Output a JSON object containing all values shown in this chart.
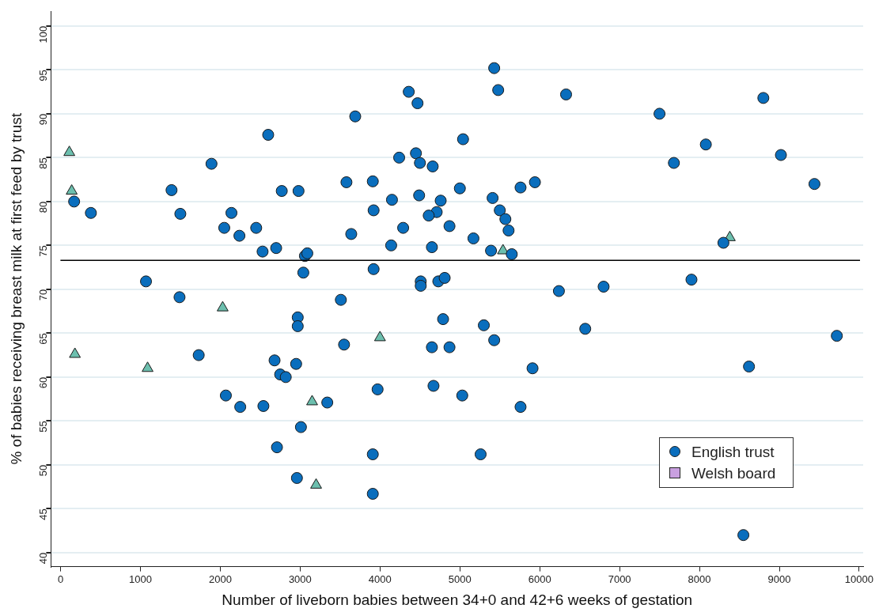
{
  "chart_data": {
    "type": "scatter",
    "xlabel": "Number of liveborn babies between 34+0 and 42+6 weeks of gestation",
    "ylabel": "% of babies receiving breast milk at first feed by trust",
    "xlim": [
      -120,
      10050
    ],
    "xticks": [
      0,
      1000,
      2000,
      3000,
      4000,
      5000,
      6000,
      7000,
      8000,
      9000,
      10000
    ],
    "ylim": [
      38.4,
      101.7
    ],
    "yticks": [
      40,
      45,
      50,
      55,
      60,
      65,
      70,
      75,
      80,
      85,
      90,
      95,
      100
    ],
    "grid": "y",
    "legend": "bottom right",
    "ref_lines": [
      {
        "axis": "y",
        "value": 73.3,
        "color": "#000000"
      }
    ],
    "series": [
      {
        "name": "English trust",
        "color": "#0a6ebd",
        "marker": "circle",
        "x": [
          170,
          380,
          1070,
          1390,
          1490,
          1500,
          1730,
          1890,
          2600,
          2770,
          2980,
          2140,
          2050,
          2450,
          2240,
          2530,
          2700,
          3060,
          3090,
          3040,
          3510,
          3690,
          3580,
          3910,
          4150,
          3920,
          3640,
          4140,
          3920,
          4360,
          4470,
          4240,
          4450,
          4500,
          4660,
          5040,
          4490,
          4760,
          5000,
          4710,
          4610,
          4290,
          4870,
          4650,
          4510,
          4510,
          4730,
          4810,
          5430,
          5480,
          6330,
          5410,
          5500,
          5570,
          5610,
          5170,
          5760,
          5940,
          5390,
          5650,
          7500,
          8080,
          7680,
          8800,
          9020,
          9440,
          8300,
          6240,
          6800,
          7900,
          2970,
          2970,
          3550,
          4790,
          4650,
          4870,
          2680,
          2950,
          2750,
          2820,
          3970,
          4670,
          5030,
          2070,
          2250,
          2540,
          3340,
          3010,
          2710,
          3910,
          2960,
          3910,
          5300,
          5430,
          6570,
          9720,
          5910,
          8620,
          5760,
          5260,
          8550
        ],
        "values": [
          80.0,
          78.7,
          70.9,
          81.3,
          69.1,
          78.6,
          62.5,
          84.3,
          87.6,
          81.2,
          81.2,
          78.7,
          77.0,
          77.0,
          76.1,
          74.3,
          74.7,
          73.8,
          74.1,
          71.9,
          68.8,
          89.7,
          82.2,
          82.3,
          80.2,
          79.0,
          76.3,
          75.0,
          72.3,
          92.5,
          91.2,
          85.0,
          85.5,
          84.4,
          84.0,
          87.1,
          80.7,
          80.1,
          81.5,
          78.8,
          78.4,
          77.0,
          77.2,
          74.8,
          70.9,
          70.4,
          70.9,
          71.3,
          95.2,
          92.7,
          92.2,
          80.4,
          79.0,
          78.0,
          76.7,
          75.8,
          81.6,
          82.2,
          74.4,
          74.0,
          90.0,
          86.5,
          84.4,
          91.8,
          85.3,
          82.0,
          75.3,
          69.8,
          70.3,
          71.1,
          66.8,
          65.8,
          63.7,
          66.6,
          63.4,
          63.4,
          61.9,
          61.5,
          60.3,
          60.0,
          58.6,
          59.0,
          57.9,
          57.9,
          56.6,
          56.7,
          57.1,
          54.3,
          52.0,
          51.2,
          48.5,
          46.7,
          65.9,
          64.2,
          65.5,
          64.7,
          61.0,
          61.2,
          56.6,
          51.2,
          42.0
        ]
      },
      {
        "color": "#6cbfae",
        "marker": "triangle",
        "x": [
          110,
          140,
          5540,
          8380,
          2030,
          4000,
          180,
          1090,
          3150,
          3200
        ],
        "values": [
          85.6,
          81.2,
          74.4,
          75.9,
          67.9,
          64.5,
          62.6,
          61.0,
          57.2,
          47.7
        ]
      },
      {
        "name": "Welsh board",
        "color": "#c9a0e0",
        "marker": "square"
      }
    ]
  }
}
